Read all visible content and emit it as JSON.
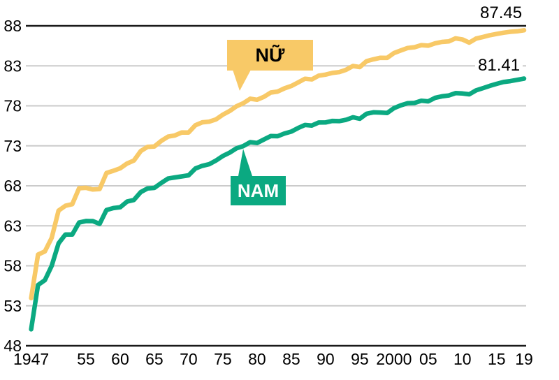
{
  "labels": {
    "female_callout": "NỮ",
    "male_callout": "NAM",
    "female_end_value": "87.45",
    "male_end_value": "81.41"
  },
  "colors": {
    "female_line": "#F8C967",
    "male_line": "#0BA981",
    "gridline": "#CBCBCB",
    "axis_line": "#1A1A1A",
    "female_callout_text": "#000000",
    "male_callout_text": "#FFFFFF",
    "background": "#FFFFFF"
  },
  "chart_data": {
    "type": "line",
    "grid": true,
    "legend_position": "inline-callouts",
    "ylim": [
      48,
      88
    ],
    "yticks": [
      48,
      53,
      58,
      63,
      68,
      73,
      78,
      83,
      88
    ],
    "dark_gridlines": [
      48,
      88
    ],
    "xticks": [
      {
        "year": 1947,
        "label": "1947"
      },
      {
        "year": 1955,
        "label": "55"
      },
      {
        "year": 1960,
        "label": "60"
      },
      {
        "year": 1965,
        "label": "65"
      },
      {
        "year": 1970,
        "label": "70"
      },
      {
        "year": 1975,
        "label": "75"
      },
      {
        "year": 1980,
        "label": "80"
      },
      {
        "year": 1985,
        "label": "85"
      },
      {
        "year": 1990,
        "label": "90"
      },
      {
        "year": 1995,
        "label": "95"
      },
      {
        "year": 2000,
        "label": "2000"
      },
      {
        "year": 2005,
        "label": "05"
      },
      {
        "year": 2010,
        "label": "10"
      },
      {
        "year": 2015,
        "label": "15"
      },
      {
        "year": 2019,
        "label": "19"
      }
    ],
    "x": [
      1947,
      1948,
      1949,
      1950,
      1951,
      1952,
      1953,
      1954,
      1955,
      1956,
      1957,
      1958,
      1959,
      1960,
      1961,
      1962,
      1963,
      1964,
      1965,
      1966,
      1967,
      1968,
      1969,
      1970,
      1971,
      1972,
      1973,
      1974,
      1975,
      1976,
      1977,
      1978,
      1979,
      1980,
      1981,
      1982,
      1983,
      1984,
      1985,
      1986,
      1987,
      1988,
      1989,
      1990,
      1991,
      1992,
      1993,
      1994,
      1995,
      1996,
      1997,
      1998,
      1999,
      2000,
      2001,
      2002,
      2003,
      2004,
      2005,
      2006,
      2007,
      2008,
      2009,
      2010,
      2011,
      2012,
      2013,
      2014,
      2015,
      2016,
      2017,
      2018,
      2019
    ],
    "series": [
      {
        "name": "NỮ",
        "color": "#F8C967",
        "end_label": "87.45",
        "values": [
          53.96,
          59.4,
          59.8,
          61.5,
          64.9,
          65.5,
          65.7,
          67.69,
          67.75,
          67.54,
          67.6,
          69.61,
          69.88,
          70.19,
          70.79,
          71.16,
          72.34,
          72.87,
          72.92,
          73.61,
          74.15,
          74.3,
          74.67,
          74.66,
          75.58,
          75.94,
          76.02,
          76.31,
          76.89,
          77.35,
          77.95,
          78.33,
          78.89,
          78.76,
          79.13,
          79.66,
          79.78,
          80.18,
          80.48,
          80.93,
          81.39,
          81.3,
          81.77,
          81.9,
          82.11,
          82.22,
          82.51,
          82.98,
          82.85,
          83.59,
          83.82,
          84.01,
          83.99,
          84.6,
          84.93,
          85.23,
          85.33,
          85.59,
          85.52,
          85.81,
          85.99,
          86.05,
          86.44,
          86.3,
          85.9,
          86.41,
          86.61,
          86.83,
          86.99,
          87.14,
          87.26,
          87.32,
          87.45
        ]
      },
      {
        "name": "NAM",
        "color": "#0BA981",
        "end_label": "81.41",
        "values": [
          50.06,
          55.6,
          56.2,
          58.0,
          60.8,
          61.9,
          61.9,
          63.41,
          63.6,
          63.59,
          63.24,
          64.98,
          65.21,
          65.32,
          66.03,
          66.23,
          67.21,
          67.67,
          67.74,
          68.35,
          68.91,
          69.05,
          69.18,
          69.31,
          70.17,
          70.5,
          70.7,
          71.16,
          71.73,
          72.15,
          72.69,
          72.97,
          73.46,
          73.35,
          73.79,
          74.22,
          74.2,
          74.54,
          74.78,
          75.23,
          75.61,
          75.54,
          75.91,
          75.92,
          76.11,
          76.09,
          76.25,
          76.57,
          76.38,
          77.01,
          77.19,
          77.16,
          77.1,
          77.72,
          78.07,
          78.32,
          78.36,
          78.64,
          78.56,
          79.0,
          79.19,
          79.29,
          79.59,
          79.55,
          79.44,
          79.94,
          80.21,
          80.5,
          80.75,
          80.98,
          81.09,
          81.25,
          81.41
        ]
      }
    ]
  }
}
